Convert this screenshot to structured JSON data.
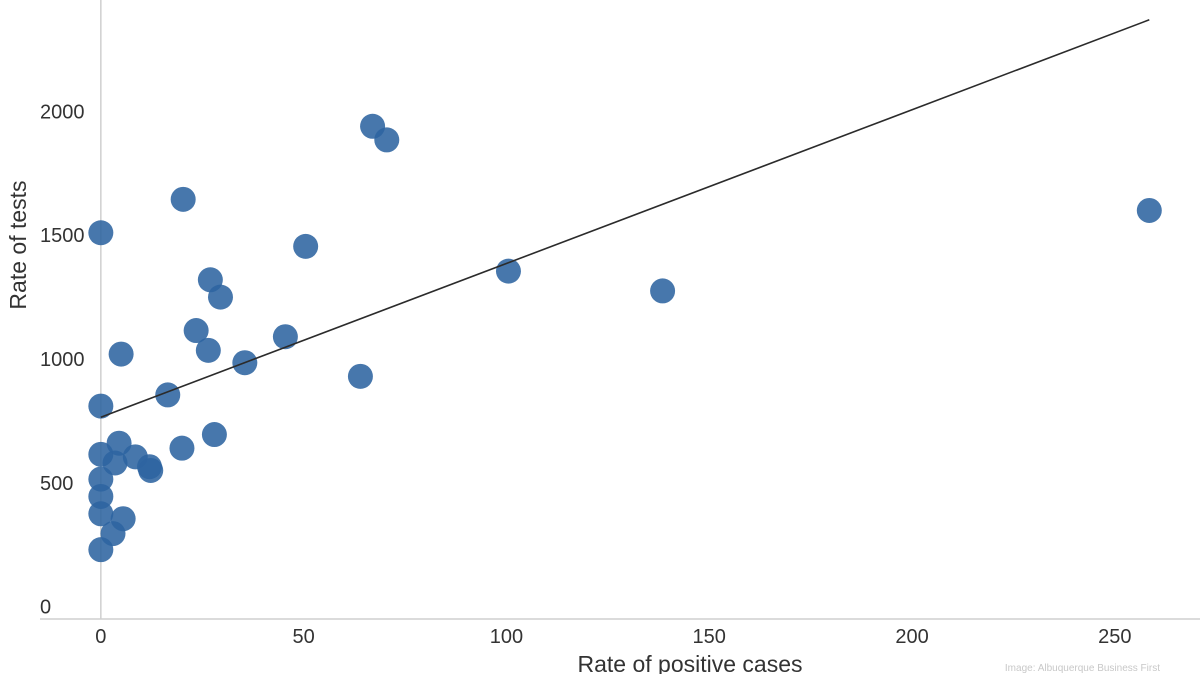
{
  "chart_data": {
    "type": "scatter",
    "title": "",
    "xlabel": "Rate of positive cases",
    "ylabel": "Rate of tests",
    "xlim": [
      -15,
      271
    ],
    "ylim": [
      -50,
      2450
    ],
    "x_ticks": [
      0,
      50,
      100,
      150,
      200,
      250
    ],
    "y_ticks": [
      0,
      500,
      1000,
      1500,
      2000
    ],
    "grid": false,
    "legend": "none",
    "point_color": "#2e64a0",
    "line_color": "#2b2b2b",
    "trendline": {
      "x": [
        0,
        258.5
      ],
      "y": [
        765,
        2370
      ]
    },
    "points": [
      {
        "x": 0,
        "y": 1510
      },
      {
        "x": 0,
        "y": 810
      },
      {
        "x": 0,
        "y": 615
      },
      {
        "x": 0,
        "y": 515
      },
      {
        "x": 0,
        "y": 445
      },
      {
        "x": 0,
        "y": 375
      },
      {
        "x": 0,
        "y": 230
      },
      {
        "x": 3,
        "y": 295
      },
      {
        "x": 3.5,
        "y": 580
      },
      {
        "x": 4.5,
        "y": 660
      },
      {
        "x": 5,
        "y": 1020
      },
      {
        "x": 5.5,
        "y": 355
      },
      {
        "x": 8.5,
        "y": 605
      },
      {
        "x": 12,
        "y": 565
      },
      {
        "x": 12.3,
        "y": 550
      },
      {
        "x": 16.5,
        "y": 855
      },
      {
        "x": 20,
        "y": 640
      },
      {
        "x": 20.3,
        "y": 1645
      },
      {
        "x": 23.5,
        "y": 1115
      },
      {
        "x": 26.5,
        "y": 1035
      },
      {
        "x": 27,
        "y": 1320
      },
      {
        "x": 28,
        "y": 695
      },
      {
        "x": 29.5,
        "y": 1250
      },
      {
        "x": 35.5,
        "y": 985
      },
      {
        "x": 45.5,
        "y": 1090
      },
      {
        "x": 50.5,
        "y": 1455
      },
      {
        "x": 64,
        "y": 930
      },
      {
        "x": 67,
        "y": 1940
      },
      {
        "x": 70.5,
        "y": 1885
      },
      {
        "x": 100.5,
        "y": 1355
      },
      {
        "x": 138.5,
        "y": 1275
      },
      {
        "x": 258.5,
        "y": 1600
      }
    ],
    "credit": "Image: Albuquerque Business First"
  }
}
